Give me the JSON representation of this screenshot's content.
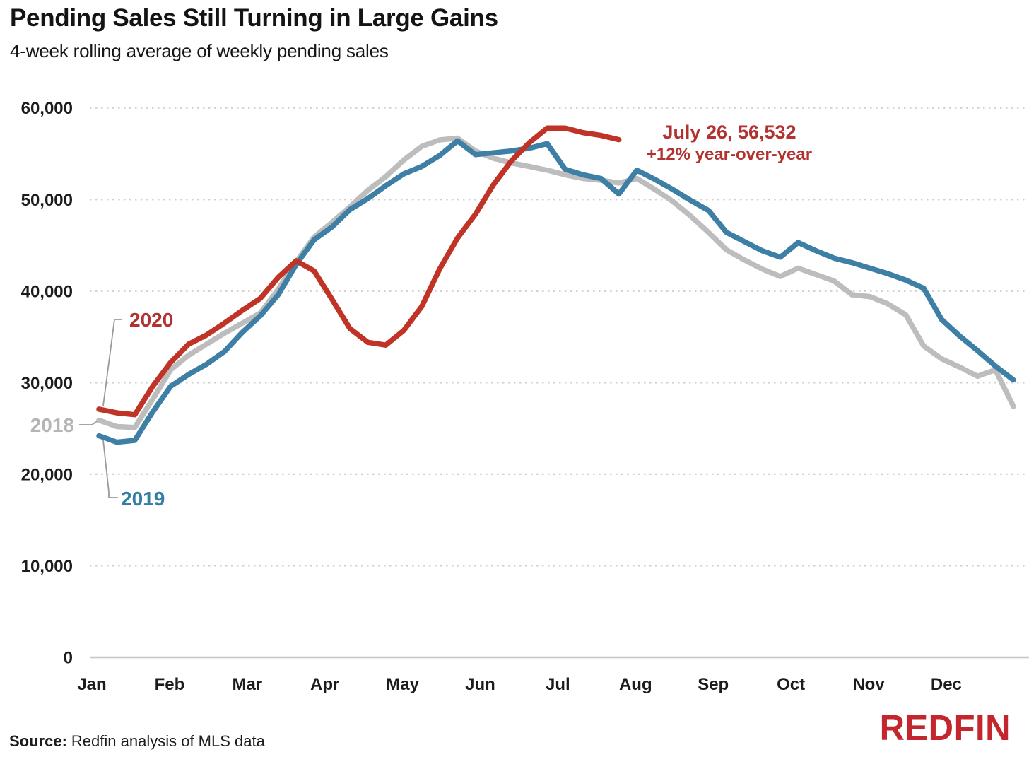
{
  "title": "Pending Sales Still Turning in Large Gains",
  "subtitle": "4-week rolling average of weekly pending sales",
  "source": {
    "label": "Source:",
    "text": "Redfin analysis of MLS data"
  },
  "logo": {
    "text": "REDFIN"
  },
  "colors": {
    "line_red": "#bf3426",
    "text_red": "#b23230",
    "line_blue": "#3d7fa5",
    "label_blue": "#337ea3",
    "line_gray": "#bdbdbd",
    "label_gray": "#b5b5b5",
    "grid": "#cfcfcf",
    "axis": "#c6c6c6",
    "leader": "#9a9a9a",
    "text": "#1c1c1c",
    "logo_red": "#c3272d"
  },
  "chart_data": {
    "type": "line",
    "title": "Pending Sales Still Turning in Large Gains",
    "subtitle": "4-week rolling average of weekly pending sales",
    "xlabel": "",
    "ylabel": "",
    "x_unit": "week of year (weekly points)",
    "ylim": [
      0,
      60000
    ],
    "grid": "dotted horizontal gridlines at each 10,000; solid baseline at 0",
    "legend": "inline series labels near January start of each line",
    "x_axis": {
      "months": [
        "Jan",
        "Feb",
        "Mar",
        "Apr",
        "May",
        "Jun",
        "Jul",
        "Aug",
        "Sep",
        "Oct",
        "Nov",
        "Dec"
      ]
    },
    "y_axis": {
      "ticks": [
        {
          "value": 0,
          "label": "0"
        },
        {
          "value": 10000,
          "label": "10,000"
        },
        {
          "value": 20000,
          "label": "20,000"
        },
        {
          "value": 30000,
          "label": "30,000"
        },
        {
          "value": 40000,
          "label": "40,000"
        },
        {
          "value": 50000,
          "label": "50,000"
        },
        {
          "value": 60000,
          "label": "60,000"
        }
      ]
    },
    "annotation": {
      "line1": "July 26, 56,532",
      "line2": "+12% year-over-year"
    },
    "series": [
      {
        "name": "2018",
        "color": "#bdbdbd",
        "label_color": "#b5b5b5",
        "values": [
          25900,
          25200,
          25100,
          28200,
          31400,
          33000,
          34200,
          35400,
          36500,
          37600,
          40200,
          43200,
          45900,
          47500,
          49200,
          51000,
          52500,
          54300,
          55800,
          56500,
          56700,
          55300,
          54500,
          54000,
          53600,
          53200,
          52700,
          52300,
          52100,
          51800,
          52300,
          51100,
          49800,
          48200,
          46400,
          44500,
          43400,
          42400,
          41600,
          42500,
          41800,
          41100,
          39600,
          39400,
          38600,
          37400,
          34000,
          32600,
          31700,
          30700,
          31400,
          27400
        ]
      },
      {
        "name": "2019",
        "color": "#3d7fa5",
        "label_color": "#337ea3",
        "values": [
          24200,
          23500,
          23700,
          26800,
          29600,
          30900,
          32000,
          33400,
          35500,
          37300,
          39600,
          42900,
          45600,
          47000,
          48900,
          50100,
          51500,
          52800,
          53600,
          54800,
          56400,
          54900,
          55100,
          55300,
          55600,
          56100,
          53300,
          52700,
          52300,
          50600,
          53200,
          52200,
          51100,
          49900,
          48800,
          46400,
          45400,
          44400,
          43700,
          45300,
          44400,
          43600,
          43100,
          42500,
          41900,
          41200,
          40300,
          36900,
          35100,
          33500,
          31800,
          30300
        ]
      },
      {
        "name": "2020",
        "color": "#bf3426",
        "label_color": "#b23230",
        "values": [
          27100,
          26700,
          26500,
          29600,
          32200,
          34200,
          35200,
          36500,
          37900,
          39200,
          41500,
          43300,
          42200,
          39100,
          35900,
          34400,
          34100,
          35700,
          38300,
          42400,
          45800,
          48400,
          51600,
          54200,
          56200,
          57800,
          57800,
          57300,
          57000,
          56532
        ],
        "last_point": {
          "date": "July 26",
          "value": 56532,
          "yoy": "+12% year-over-year"
        }
      }
    ]
  }
}
